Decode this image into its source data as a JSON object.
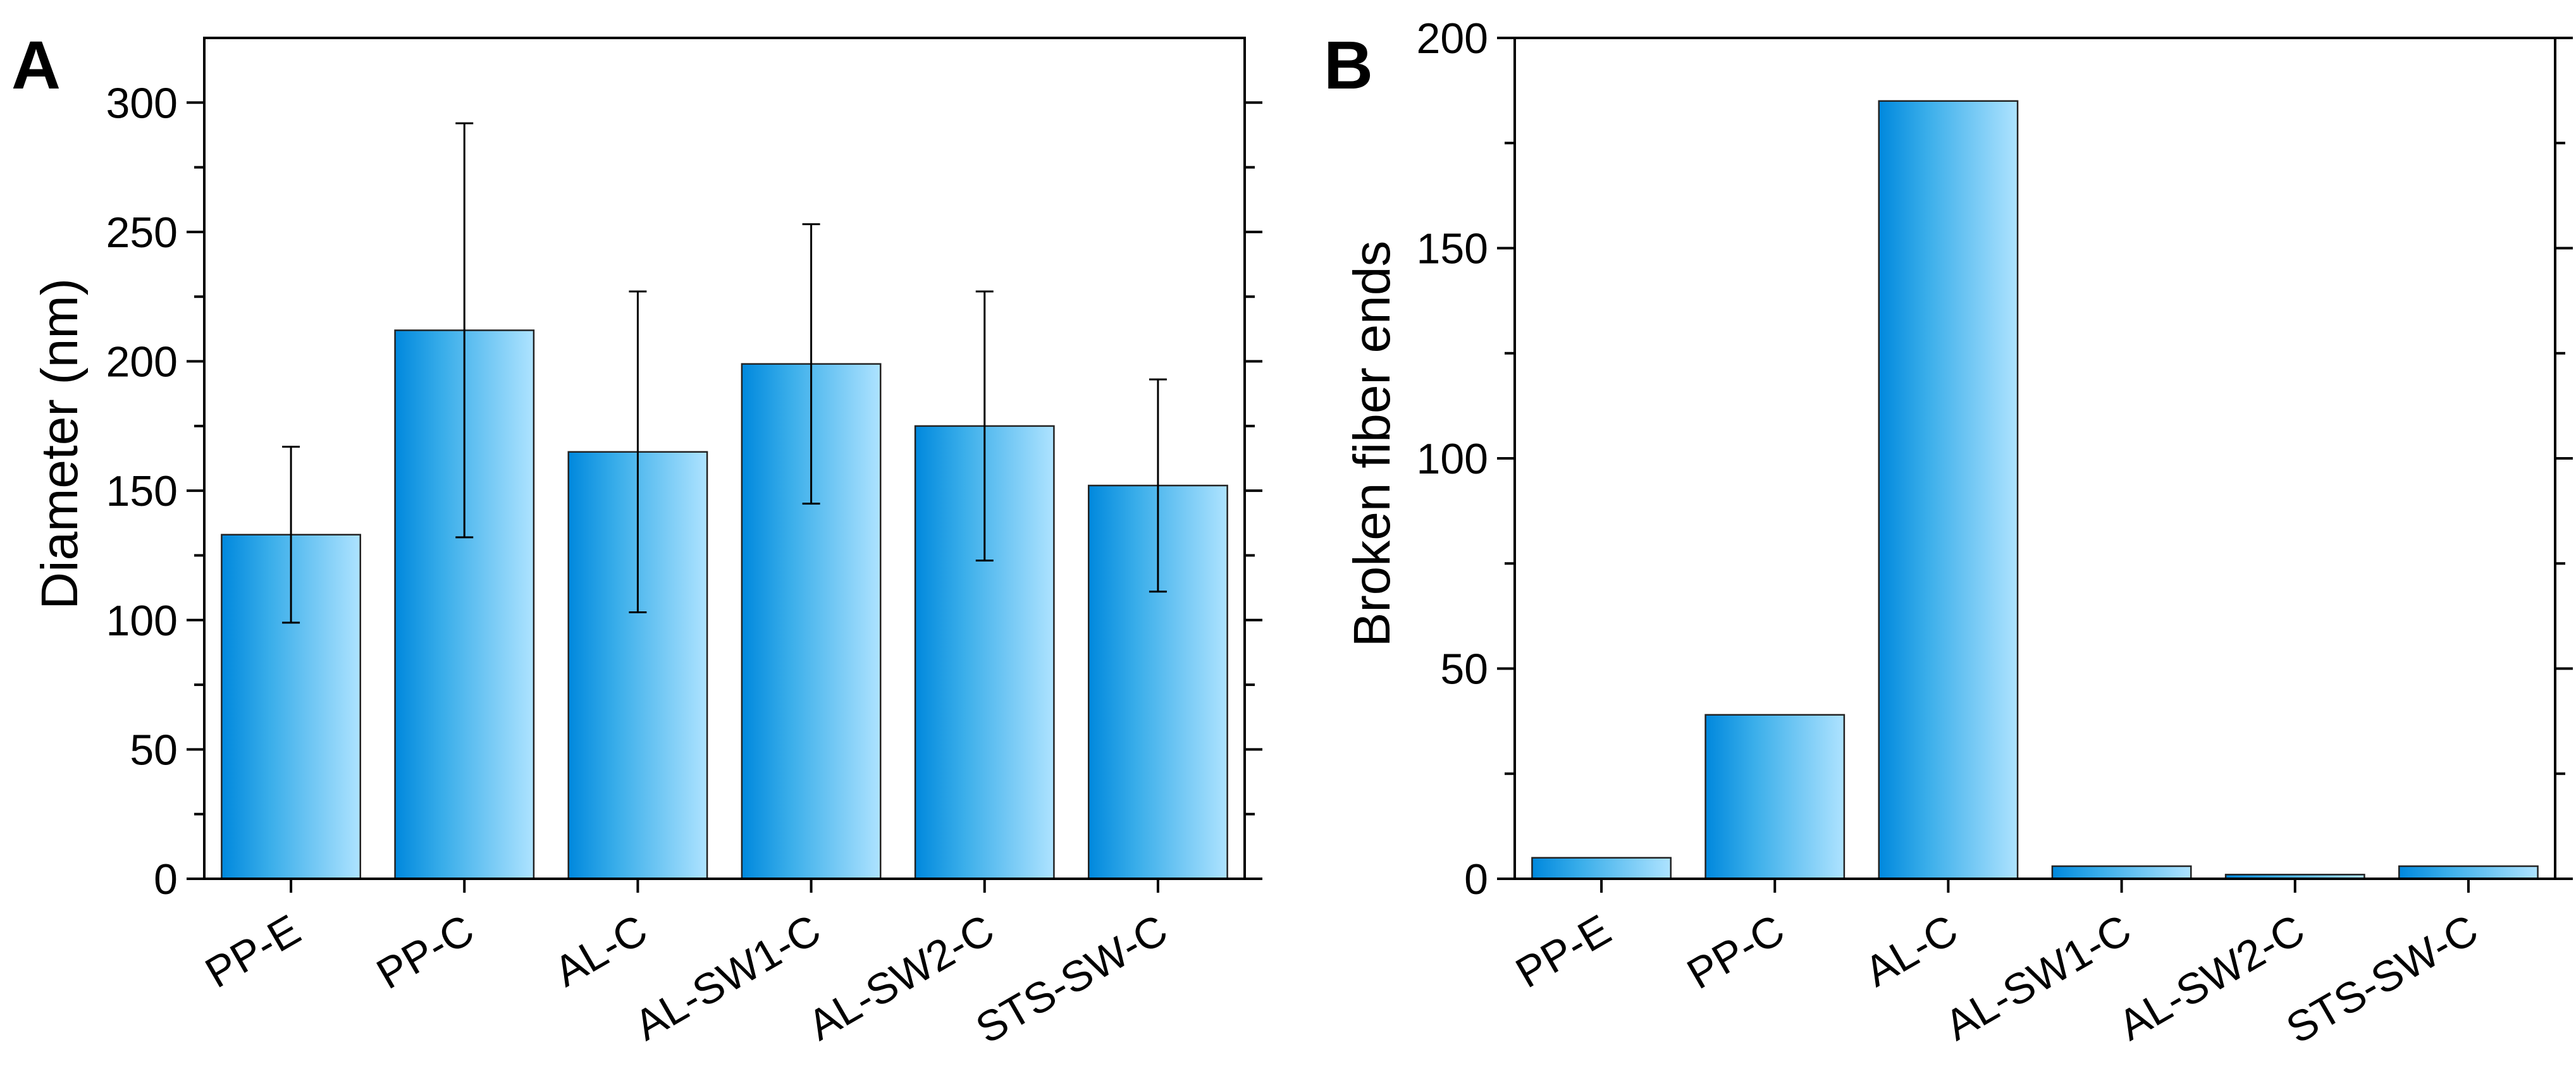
{
  "chart_data": [
    {
      "panel": "A",
      "type": "bar",
      "categories": [
        "PP-E",
        "PP-C",
        "AL-C",
        "AL-SW1-C",
        "AL-SW2-C",
        "STS-SW-C"
      ],
      "values": [
        133,
        212,
        165,
        199,
        175,
        152
      ],
      "error": [
        34,
        80,
        62,
        54,
        52,
        41
      ],
      "ylabel": "Diameter (nm)",
      "ylim": [
        0,
        325
      ],
      "yticks": [
        0,
        50,
        100,
        150,
        200,
        250,
        300
      ],
      "grid": false,
      "bar_color_start": "#0088dd",
      "bar_color_end": "#aee3ff"
    },
    {
      "panel": "B",
      "type": "bar",
      "categories": [
        "PP-E",
        "PP-C",
        "AL-C",
        "AL-SW1-C",
        "AL-SW2-C",
        "STS-SW-C"
      ],
      "values": [
        5,
        39,
        185,
        3,
        1,
        3
      ],
      "ylabel": "Broken fiber ends",
      "ylim": [
        0,
        200
      ],
      "yticks": [
        0,
        50,
        100,
        150,
        200
      ],
      "grid": false,
      "bar_color_start": "#0088dd",
      "bar_color_end": "#aee3ff"
    }
  ]
}
